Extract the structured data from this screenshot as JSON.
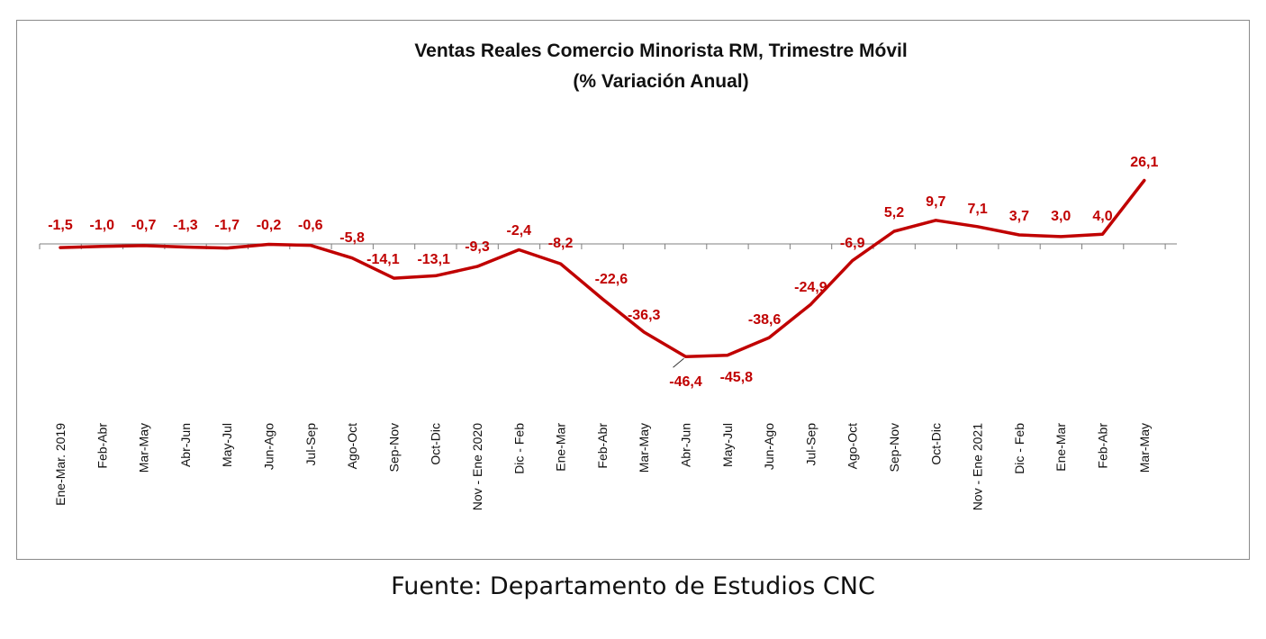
{
  "chart_data": {
    "type": "line",
    "title": "Ventas Reales Comercio Minorista RM, Trimestre Móvil",
    "subtitle": "(% Variación Anual)",
    "categories": [
      "Ene-Mar. 2019",
      "Feb-Abr",
      "Mar-May",
      "Abr-Jun",
      "May-Jul",
      "Jun-Ago",
      "Jul-Sep",
      "Ago-Oct",
      "Sep-Nov",
      "Oct-Dic",
      "Nov - Ene 2020",
      "Dic - Feb",
      "Ene-Mar",
      "Feb-Abr",
      "Mar-May",
      "Abr-Jun",
      "May-Jul",
      "Jun-Ago",
      "Jul-Sep",
      "Ago-Oct",
      "Sep-Nov",
      "Oct-Dic",
      "Nov - Ene 2021",
      "Dic - Feb",
      "Ene-Mar",
      "Feb-Abr",
      "Mar-May"
    ],
    "series": [
      {
        "values": [
          -1.5,
          -1.0,
          -0.7,
          -1.3,
          -1.7,
          -0.2,
          -0.6,
          -5.8,
          -14.1,
          -13.1,
          -9.3,
          -2.4,
          -8.2,
          -22.6,
          -36.3,
          -46.4,
          -45.8,
          -38.6,
          -24.9,
          -6.9,
          5.2,
          9.7,
          7.1,
          3.7,
          3.0,
          4.0,
          26.1
        ],
        "labels": [
          "-1,5",
          "-1,0",
          "-0,7",
          "-1,3",
          "-1,7",
          "-0,2",
          "-0,6",
          "-5,8",
          "-14,1",
          "-13,1",
          "-9,3",
          "-2,4",
          "-8,2",
          "-22,6",
          "-36,3",
          "-46,4",
          "-45,8",
          "-38,6",
          "-24,9",
          "-6,9",
          "5,2",
          "9,7",
          "7,1",
          "3,7",
          "3,0",
          "4,0",
          "26,1"
        ],
        "color": "#c00000"
      }
    ],
    "xlabel": "",
    "ylabel": "",
    "ylim": [
      -50,
      30
    ],
    "grid": false,
    "legend": "none"
  },
  "source": "Fuente: Departamento de Estudios CNC"
}
